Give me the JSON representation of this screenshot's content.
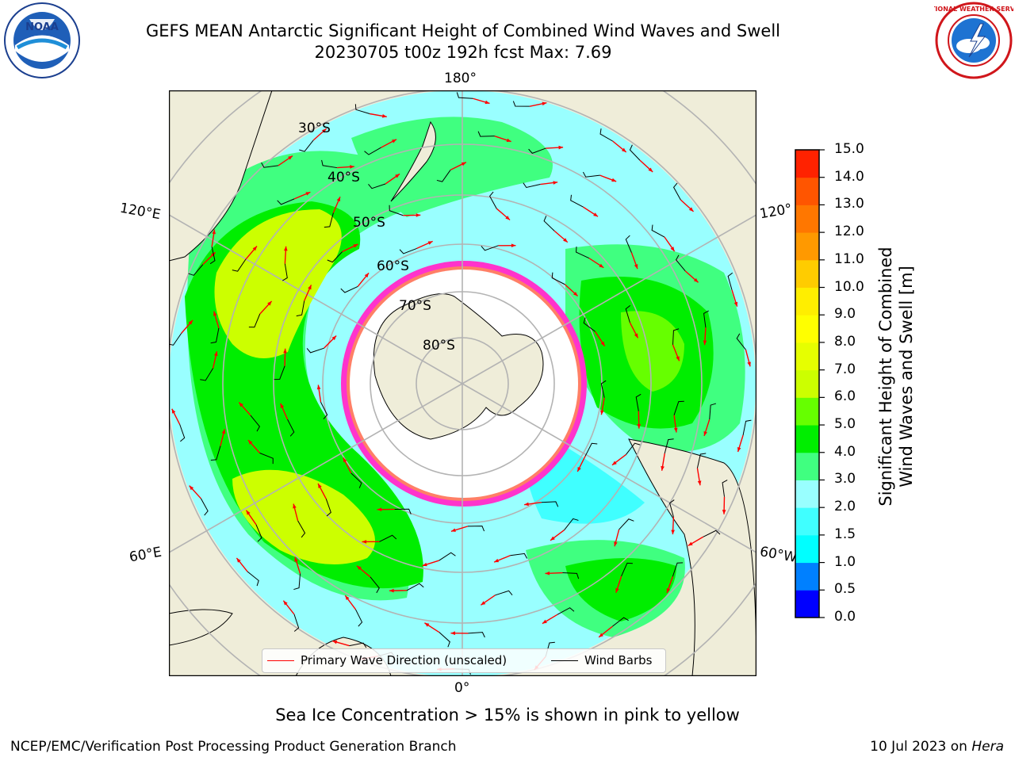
{
  "header": {
    "title_line1": "GEFS MEAN Antarctic Significant Height of Combined Wind Waves and Swell",
    "title_line2": "20230705 t00z 192h fcst   Max: 7.69"
  },
  "logos": {
    "left": {
      "name": "NOAA",
      "ring_text": "NATIONAL OCEANIC AND ATMOSPHERIC ADMINISTRATION · U.S. DEPARTMENT OF COMMERCE"
    },
    "right": {
      "name": "NATIONAL WEATHER SERVICE"
    }
  },
  "map": {
    "projection": "south polar stereographic",
    "longitude_labels": {
      "top": "180°",
      "bottom": "0°",
      "left_upper": "120°E",
      "left_lower": "60°E",
      "right_upper": "120°",
      "right_lower": "60°W"
    },
    "latitude_labels": [
      "30°S",
      "40°S",
      "50°S",
      "60°S",
      "70°S",
      "80°S"
    ],
    "colors": {
      "land": "#efedd9",
      "ice_edge_pink": "#ff33cc",
      "ice_edge_yellow": "#ffcc00",
      "grid": "#b3b3b3"
    }
  },
  "legend": {
    "primary_wave": {
      "label": "Primary Wave Direction (unscaled)",
      "color": "#ff0000"
    },
    "wind_barbs": {
      "label": "Wind Barbs",
      "color": "#000000"
    }
  },
  "colorbar": {
    "label_line1": "Significant Height of Combined",
    "label_line2": "Wind Waves and Swell [m]",
    "ticks": [
      "0.0",
      "0.5",
      "1.0",
      "1.5",
      "2.0",
      "3.0",
      "4.0",
      "5.0",
      "6.0",
      "7.0",
      "8.0",
      "9.0",
      "10.0",
      "11.0",
      "12.0",
      "13.0",
      "14.0",
      "15.0"
    ],
    "colors": [
      "#0000ff",
      "#0080ff",
      "#00ffff",
      "#40ffff",
      "#99ffff",
      "#40ff80",
      "#00ee00",
      "#66ff00",
      "#ccff00",
      "#e6ff00",
      "#ffff00",
      "#ffee00",
      "#ffcc00",
      "#ff9900",
      "#ff7700",
      "#ff5500",
      "#ff2200"
    ]
  },
  "caption": "Sea Ice Concentration > 15% is shown in pink to yellow",
  "footer": {
    "left": "NCEP/EMC/Verification Post Processing Product Generation Branch",
    "right_prefix": "10 Jul 2023 on ",
    "right_host": "Hera"
  }
}
